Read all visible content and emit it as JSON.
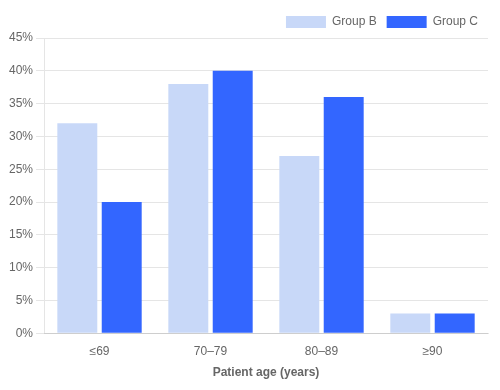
{
  "chart_data": {
    "type": "bar",
    "xlabel": "Patient age (years)",
    "categories": [
      "≤69",
      "70–79",
      "80–89",
      "≥90"
    ],
    "series": [
      {
        "name": "Group B",
        "color": "#c8d8f8",
        "values": [
          32,
          38,
          27,
          3
        ]
      },
      {
        "name": "Group C",
        "color": "#3366ff",
        "values": [
          20,
          40,
          36,
          3
        ]
      }
    ],
    "ylim": [
      0,
      45
    ],
    "yticks": [
      {
        "value": 0,
        "label": "0%"
      },
      {
        "value": 5,
        "label": "5%"
      },
      {
        "value": 10,
        "label": "10%"
      },
      {
        "value": 15,
        "label": "15%"
      },
      {
        "value": 20,
        "label": "20%"
      },
      {
        "value": 25,
        "label": "25%"
      },
      {
        "value": 30,
        "label": "30%"
      },
      {
        "value": 35,
        "label": "35%"
      },
      {
        "value": 40,
        "label": "40%"
      },
      {
        "value": 45,
        "label": "45%"
      }
    ],
    "grid": true,
    "legend": "upper right"
  }
}
